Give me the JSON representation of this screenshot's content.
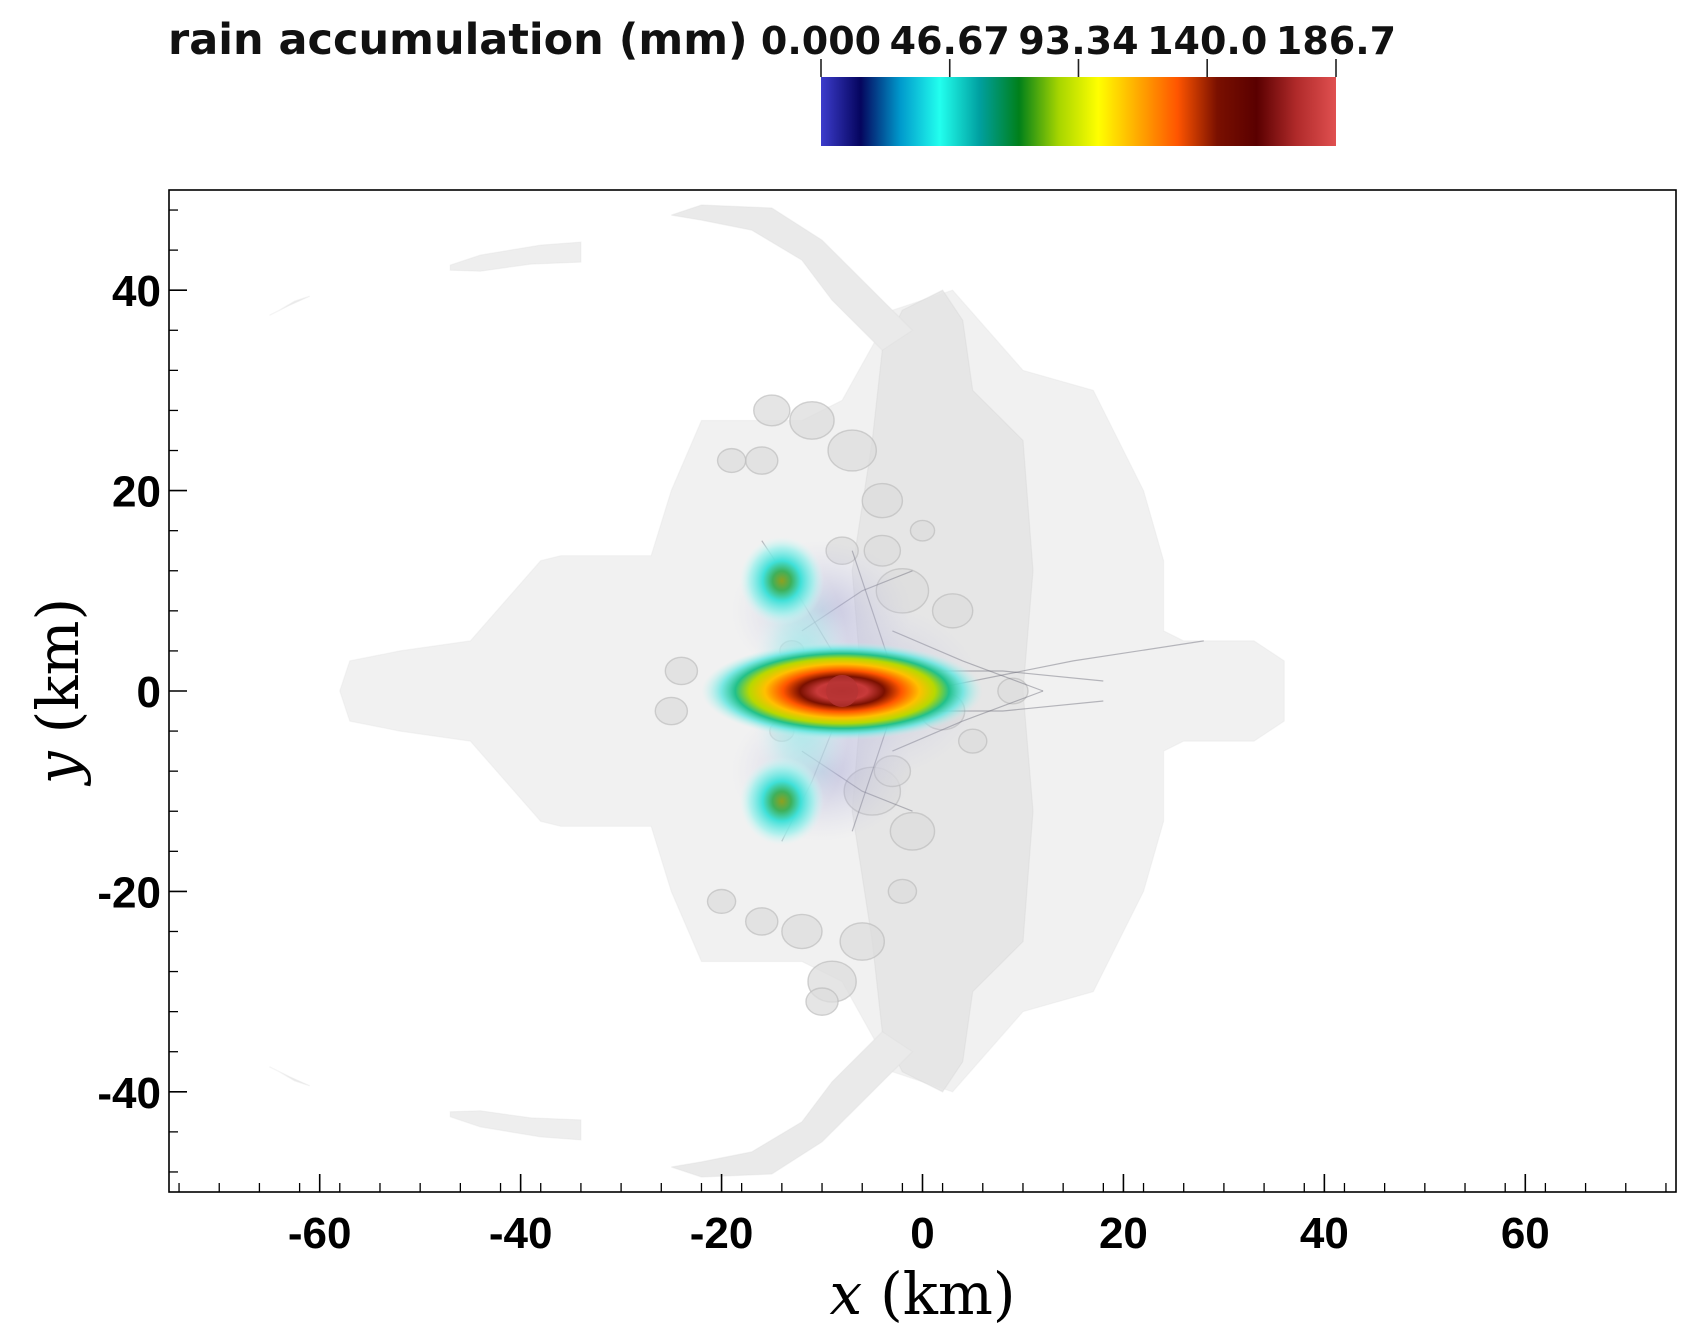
{
  "chart_data": {
    "type": "heatmap",
    "title": "rain accumulation (mm)",
    "xlabel_var": "x",
    "xlabel_unit": "(km)",
    "ylabel_var": "y",
    "ylabel_unit": "(km)",
    "xlim": [
      -75,
      75
    ],
    "ylim": [
      -50,
      50
    ],
    "x_ticks": [
      -60,
      -40,
      -20,
      0,
      20,
      40,
      60
    ],
    "x_tick_labels": [
      "-60",
      "-40",
      "-20",
      "0",
      "20",
      "40",
      "60"
    ],
    "y_ticks": [
      -40,
      -20,
      0,
      20,
      40
    ],
    "y_tick_labels": [
      "-40",
      "-20",
      "0",
      "20",
      "40"
    ],
    "colorbar": {
      "min": 0.0,
      "max": 186.7,
      "ticks": [
        0.0,
        46.67,
        93.34,
        140.0,
        186.7
      ],
      "tick_labels": [
        "0.000",
        "46.67",
        "93.34",
        "140.0",
        "186.7"
      ],
      "colormap": [
        "#3c3ccc",
        "#05055e",
        "#0099cc",
        "#22ffee",
        "#00a0a0",
        "#00801a",
        "#a6d500",
        "#ffff00",
        "#ffaa00",
        "#ff5500",
        "#7a1000",
        "#5a0000",
        "#b02a2a",
        "#e05050"
      ]
    },
    "features": [
      {
        "name": "peak",
        "x": -8,
        "y": 0,
        "value": 186.7
      },
      {
        "name": "secondary-north",
        "x": -14,
        "y": 11,
        "value": 75
      },
      {
        "name": "secondary-south",
        "x": -14,
        "y": -11,
        "value": 75
      }
    ],
    "grid": false,
    "legend": "colorbar-top"
  }
}
